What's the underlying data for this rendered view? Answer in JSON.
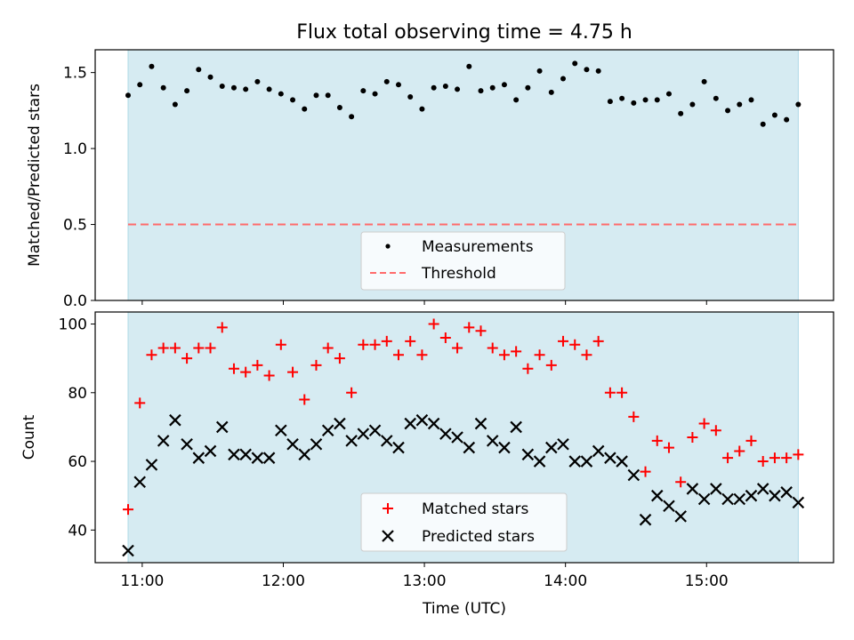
{
  "chart_data": [
    {
      "type": "scatter",
      "title": "Flux total observing time = 4.75 h",
      "xlabel": "",
      "ylabel": "Matched/Predicted stars",
      "ylim": [
        0,
        1.65
      ],
      "yticks": [
        "0.0",
        "0.5",
        "1.0",
        "1.5"
      ],
      "xticks": [
        "11:00",
        "12:00",
        "13:00",
        "14:00",
        "15:00"
      ],
      "xrange": [
        "10:40",
        "15:54"
      ],
      "shaded_interval": [
        "10:54",
        "15:39"
      ],
      "shade_color": "#add8e6",
      "legend_position": "lower center",
      "series": [
        {
          "name": "Measurements",
          "color": "#000000",
          "marker": "dot",
          "x": [
            "10:54",
            "10:59",
            "11:04",
            "11:09",
            "11:14",
            "11:19",
            "11:24",
            "11:29",
            "11:34",
            "11:39",
            "11:44",
            "11:49",
            "11:54",
            "11:59",
            "12:04",
            "12:09",
            "12:14",
            "12:19",
            "12:24",
            "12:29",
            "12:34",
            "12:39",
            "12:44",
            "12:49",
            "12:54",
            "12:59",
            "13:04",
            "13:09",
            "13:14",
            "13:19",
            "13:24",
            "13:29",
            "13:34",
            "13:39",
            "13:44",
            "13:49",
            "13:54",
            "13:59",
            "14:04",
            "14:09",
            "14:14",
            "14:19",
            "14:24",
            "14:29",
            "14:34",
            "14:39",
            "14:44",
            "14:49",
            "14:54",
            "14:59",
            "15:04",
            "15:09",
            "15:14",
            "15:19",
            "15:24",
            "15:29",
            "15:34",
            "15:39"
          ],
          "y": [
            1.35,
            1.42,
            1.54,
            1.4,
            1.29,
            1.38,
            1.52,
            1.47,
            1.41,
            1.4,
            1.39,
            1.44,
            1.39,
            1.36,
            1.32,
            1.26,
            1.35,
            1.35,
            1.27,
            1.21,
            1.38,
            1.36,
            1.44,
            1.42,
            1.34,
            1.26,
            1.4,
            1.41,
            1.39,
            1.54,
            1.38,
            1.4,
            1.42,
            1.32,
            1.4,
            1.51,
            1.37,
            1.46,
            1.56,
            1.52,
            1.51,
            1.31,
            1.33,
            1.3,
            1.32,
            1.32,
            1.36,
            1.23,
            1.29,
            1.44,
            1.33,
            1.25,
            1.29,
            1.32,
            1.16,
            1.22,
            1.19,
            1.29
          ]
        },
        {
          "name": "Threshold",
          "color": "#ff6b6b",
          "line": "dashed",
          "x": [
            "10:54",
            "15:39"
          ],
          "y": [
            0.5,
            0.5
          ]
        }
      ]
    },
    {
      "type": "scatter",
      "title": "",
      "xlabel": "Time (UTC)",
      "ylabel": "Count",
      "ylim": [
        30.5,
        103.5
      ],
      "yticks": [
        "40",
        "60",
        "80",
        "100"
      ],
      "xticks": [
        "11:00",
        "12:00",
        "13:00",
        "14:00",
        "15:00"
      ],
      "xrange": [
        "10:40",
        "15:54"
      ],
      "shaded_interval": [
        "10:54",
        "15:39"
      ],
      "shade_color": "#add8e6",
      "legend_position": "lower center",
      "series": [
        {
          "name": "Matched stars",
          "color": "#ff0000",
          "marker": "plus",
          "x": [
            "10:54",
            "10:59",
            "11:04",
            "11:09",
            "11:14",
            "11:19",
            "11:24",
            "11:29",
            "11:34",
            "11:39",
            "11:44",
            "11:49",
            "11:54",
            "11:59",
            "12:04",
            "12:09",
            "12:14",
            "12:19",
            "12:24",
            "12:29",
            "12:34",
            "12:39",
            "12:44",
            "12:49",
            "12:54",
            "12:59",
            "13:04",
            "13:09",
            "13:14",
            "13:19",
            "13:24",
            "13:29",
            "13:34",
            "13:39",
            "13:44",
            "13:49",
            "13:54",
            "13:59",
            "14:04",
            "14:09",
            "14:14",
            "14:19",
            "14:24",
            "14:29",
            "14:34",
            "14:39",
            "14:44",
            "14:49",
            "14:54",
            "14:59",
            "15:04",
            "15:09",
            "15:14",
            "15:19",
            "15:24",
            "15:29",
            "15:34",
            "15:39"
          ],
          "y": [
            46,
            77,
            91,
            93,
            93,
            90,
            93,
            93,
            99,
            87,
            86,
            88,
            85,
            94,
            86,
            78,
            88,
            93,
            90,
            80,
            94,
            94,
            95,
            91,
            95,
            91,
            100,
            96,
            93,
            99,
            98,
            93,
            91,
            92,
            87,
            91,
            88,
            95,
            94,
            91,
            95,
            80,
            80,
            73,
            57,
            66,
            64,
            54,
            67,
            71,
            69,
            61,
            63,
            66,
            60,
            61,
            61,
            62
          ]
        },
        {
          "name": "Predicted stars",
          "color": "#000000",
          "marker": "cross",
          "x": [
            "10:54",
            "10:59",
            "11:04",
            "11:09",
            "11:14",
            "11:19",
            "11:24",
            "11:29",
            "11:34",
            "11:39",
            "11:44",
            "11:49",
            "11:54",
            "11:59",
            "12:04",
            "12:09",
            "12:14",
            "12:19",
            "12:24",
            "12:29",
            "12:34",
            "12:39",
            "12:44",
            "12:49",
            "12:54",
            "12:59",
            "13:04",
            "13:09",
            "13:14",
            "13:19",
            "13:24",
            "13:29",
            "13:34",
            "13:39",
            "13:44",
            "13:49",
            "13:54",
            "13:59",
            "14:04",
            "14:09",
            "14:14",
            "14:19",
            "14:24",
            "14:29",
            "14:34",
            "14:39",
            "14:44",
            "14:49",
            "14:54",
            "14:59",
            "15:04",
            "15:09",
            "15:14",
            "15:19",
            "15:24",
            "15:29",
            "15:34",
            "15:39"
          ],
          "y": [
            34,
            54,
            59,
            66,
            72,
            65,
            61,
            63,
            70,
            62,
            62,
            61,
            61,
            69,
            65,
            62,
            65,
            69,
            71,
            66,
            68,
            69,
            66,
            64,
            71,
            72,
            71,
            68,
            67,
            64,
            71,
            66,
            64,
            70,
            62,
            60,
            64,
            65,
            60,
            60,
            63,
            61,
            60,
            56,
            43,
            50,
            47,
            44,
            52,
            49,
            52,
            49,
            49,
            50,
            52,
            50,
            51,
            48
          ]
        }
      ]
    }
  ]
}
